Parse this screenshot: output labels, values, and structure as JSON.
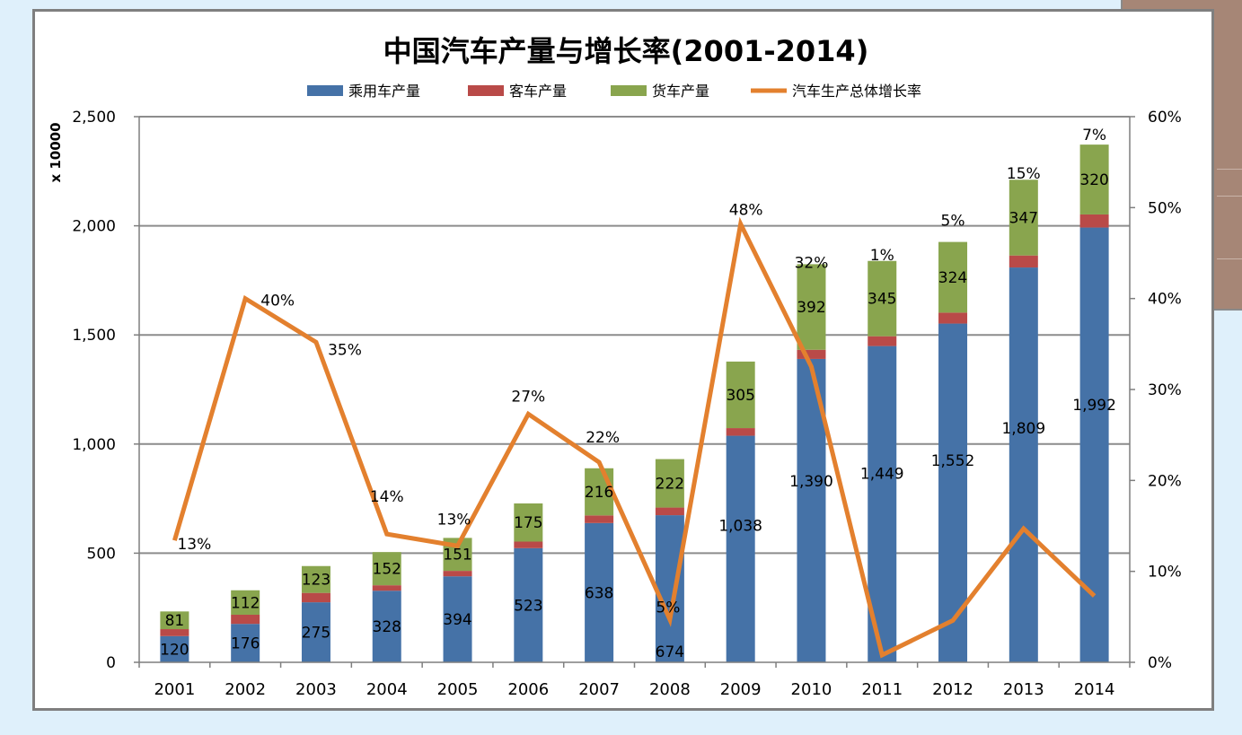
{
  "chart_data": {
    "type": "bar",
    "stacked": true,
    "title": "中国汽车产量与增长率(2001-2014)",
    "ylabel": "x 10000",
    "ylim": [
      0,
      2500
    ],
    "y2lim": [
      0,
      0.6
    ],
    "grid": true,
    "legend_position": "top",
    "categories": [
      "2001",
      "2002",
      "2003",
      "2004",
      "2005",
      "2006",
      "2007",
      "2008",
      "2009",
      "2010",
      "2011",
      "2012",
      "2013",
      "2014"
    ],
    "y_ticks": [
      "0",
      "500",
      "1,000",
      "1,500",
      "2,000",
      "2,500"
    ],
    "y2_ticks": [
      "0%",
      "10%",
      "20%",
      "30%",
      "40%",
      "50%",
      "60%"
    ],
    "series": [
      {
        "name": "乘用车产量",
        "kind": "bar",
        "color": "#4572a7",
        "values": [
          120,
          176,
          275,
          328,
          394,
          523,
          638,
          674,
          1038,
          1390,
          1449,
          1552,
          1809,
          1992
        ],
        "labels": [
          "120",
          "176",
          "275",
          "328",
          "394",
          "523",
          "638",
          "674",
          "1,038",
          "1,390",
          "1,449",
          "1,552",
          "1,809",
          "1,992"
        ]
      },
      {
        "name": "客车产量",
        "kind": "bar",
        "color": "#b94a48",
        "values": [
          32,
          42,
          43,
          25,
          25,
          30,
          35,
          35,
          35,
          42,
          45,
          50,
          55,
          60
        ]
      },
      {
        "name": "货车产量",
        "kind": "bar",
        "color": "#89a54e",
        "values": [
          81,
          112,
          123,
          152,
          151,
          175,
          216,
          222,
          305,
          392,
          345,
          324,
          347,
          320
        ],
        "labels": [
          "81",
          "112",
          "123",
          "152",
          "151",
          "175",
          "216",
          "222",
          "305",
          "392",
          "345",
          "324",
          "347",
          "320"
        ]
      },
      {
        "name": "汽车生产总体增长率",
        "kind": "line",
        "axis": "right",
        "color": "#e3802e",
        "values": [
          0.134,
          0.4,
          0.352,
          0.141,
          0.128,
          0.273,
          0.22,
          0.047,
          0.482,
          0.325,
          0.008,
          0.046,
          0.147,
          0.073
        ],
        "labels": [
          "13%",
          "40%",
          "35%",
          "14%",
          "13%",
          "27%",
          "22%",
          "5%",
          "48%",
          "32%",
          "1%",
          "5%",
          "15%",
          "7%"
        ]
      }
    ]
  }
}
